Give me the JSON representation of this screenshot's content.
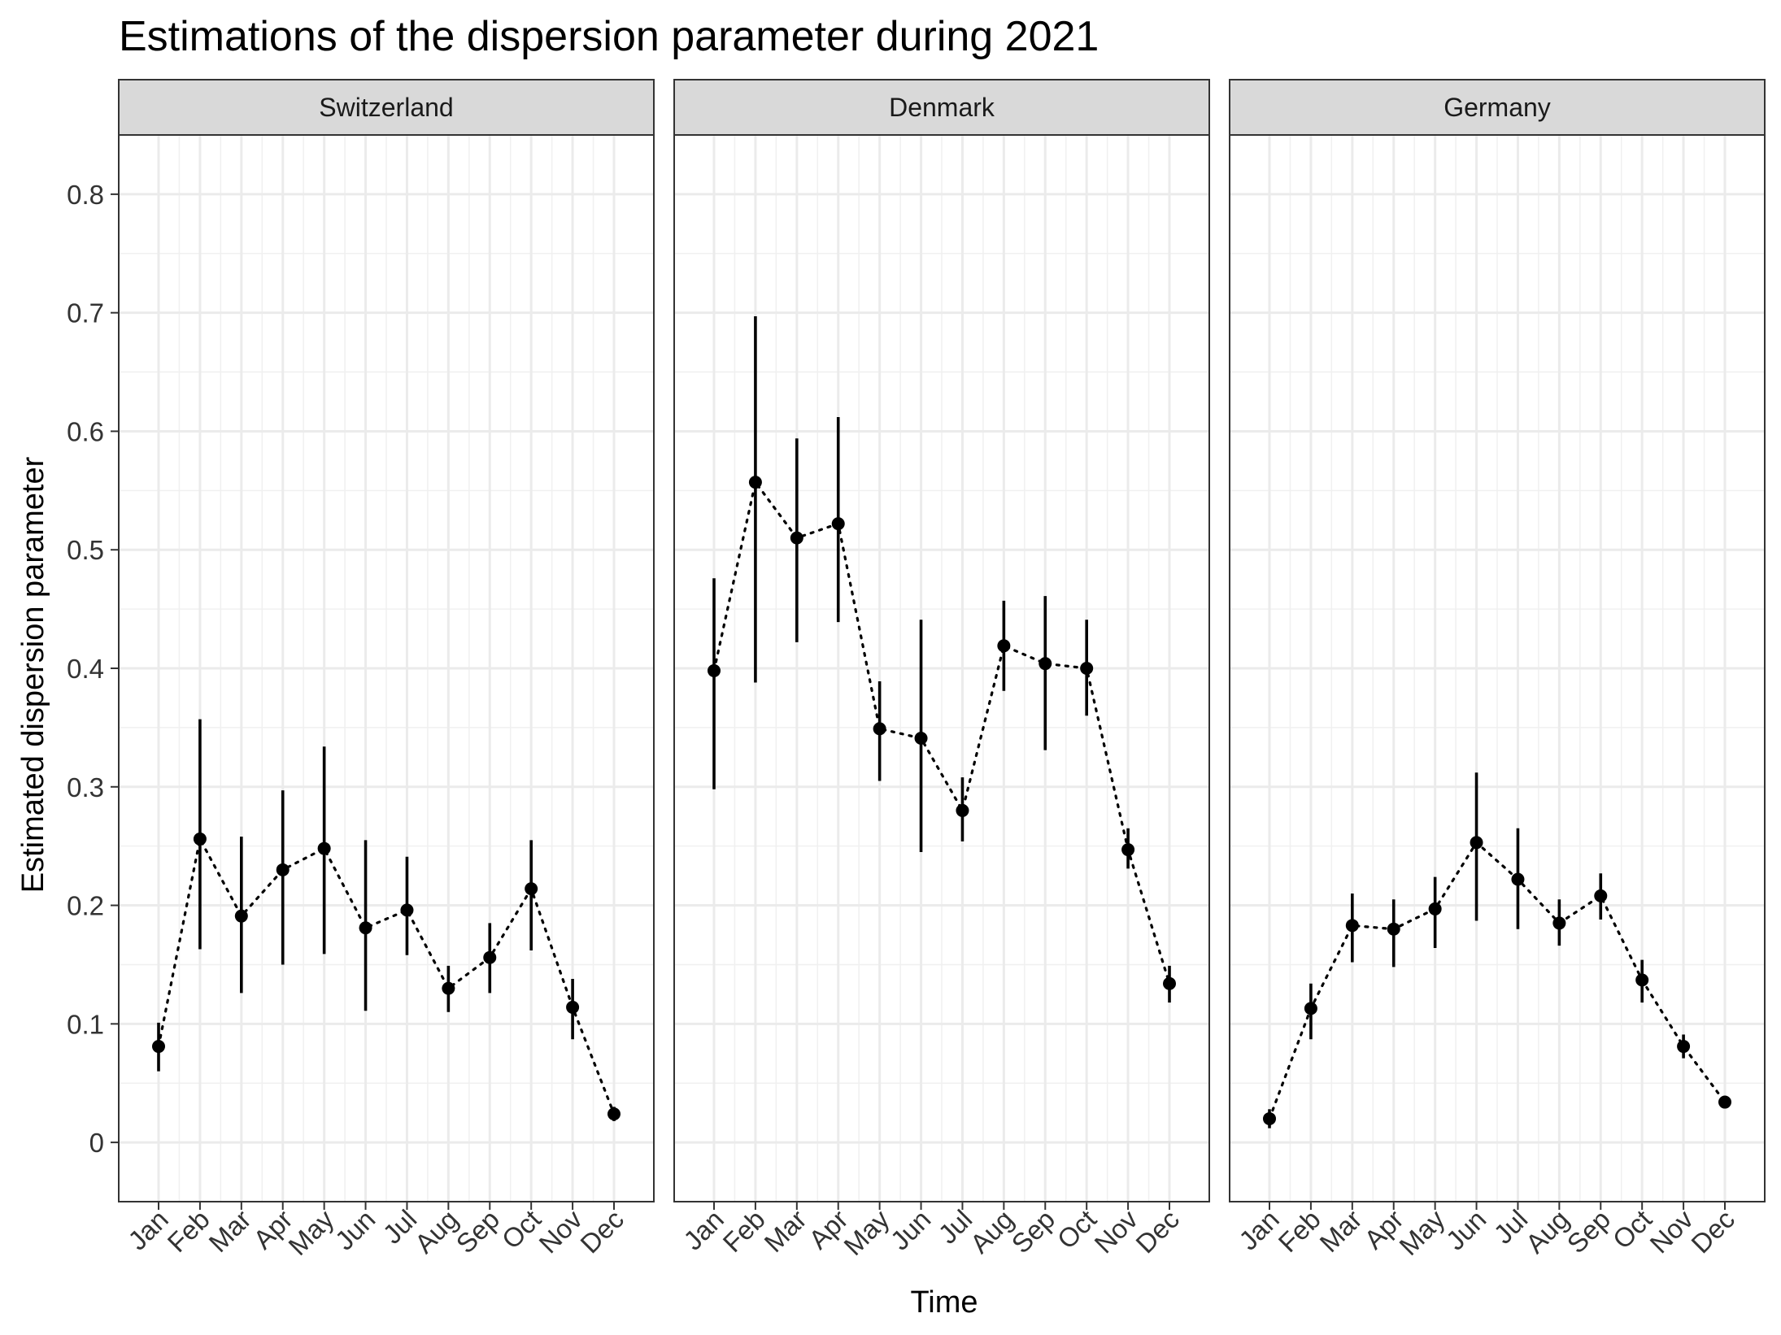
{
  "chart_data": {
    "type": "scatter",
    "title": "Estimations of the dispersion parameter during 2021",
    "xlabel": "Time",
    "ylabel": "Estimated dispersion parameter",
    "ylim": [
      -0.05,
      0.85
    ],
    "yticks": [
      0,
      0.1,
      0.2,
      0.3,
      0.4,
      0.5,
      0.6,
      0.7,
      0.8
    ],
    "ytick_labels": [
      "0",
      "0.1",
      "0.2",
      "0.3",
      "0.4",
      "0.5",
      "0.6",
      "0.7",
      "0.8"
    ],
    "categories": [
      "Jan",
      "Feb",
      "Mar",
      "Apr",
      "May",
      "Jun",
      "Jul",
      "Aug",
      "Sep",
      "Oct",
      "Nov",
      "Dec"
    ],
    "grid": true,
    "connector": "dotted line",
    "error_bars": "vertical intervals",
    "panels": [
      {
        "name": "Switzerland",
        "values": [
          0.081,
          0.256,
          0.191,
          0.23,
          0.248,
          0.181,
          0.196,
          0.13,
          0.156,
          0.214,
          0.114,
          0.024
        ],
        "lower": [
          0.06,
          0.163,
          0.126,
          0.15,
          0.159,
          0.111,
          0.158,
          0.11,
          0.126,
          0.162,
          0.087,
          0.018
        ],
        "upper": [
          0.101,
          0.357,
          0.258,
          0.297,
          0.334,
          0.255,
          0.241,
          0.149,
          0.185,
          0.255,
          0.138,
          0.03
        ]
      },
      {
        "name": "Denmark",
        "values": [
          0.398,
          0.557,
          0.51,
          0.522,
          0.349,
          0.341,
          0.28,
          0.419,
          0.404,
          0.4,
          0.247,
          0.134
        ],
        "lower": [
          0.298,
          0.388,
          0.422,
          0.439,
          0.305,
          0.245,
          0.254,
          0.381,
          0.331,
          0.36,
          0.231,
          0.118
        ],
        "upper": [
          0.476,
          0.697,
          0.594,
          0.612,
          0.389,
          0.441,
          0.308,
          0.457,
          0.461,
          0.441,
          0.265,
          0.149
        ]
      },
      {
        "name": "Germany",
        "values": [
          0.02,
          0.113,
          0.183,
          0.18,
          0.197,
          0.253,
          0.222,
          0.185,
          0.208,
          0.137,
          0.081,
          0.034
        ],
        "lower": [
          0.012,
          0.087,
          0.152,
          0.148,
          0.164,
          0.187,
          0.18,
          0.166,
          0.188,
          0.118,
          0.071,
          0.03
        ],
        "upper": [
          0.028,
          0.134,
          0.21,
          0.205,
          0.224,
          0.312,
          0.265,
          0.205,
          0.227,
          0.154,
          0.091,
          0.038
        ]
      }
    ]
  }
}
